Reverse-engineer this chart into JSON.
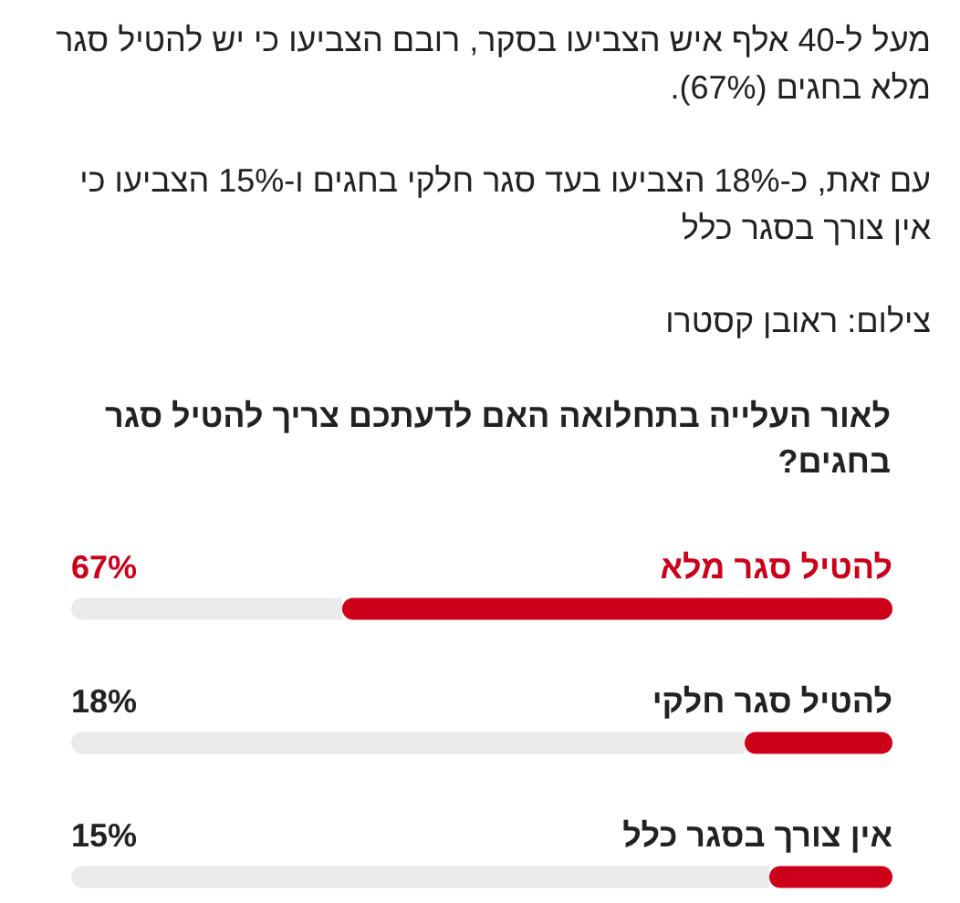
{
  "chart_data": {
    "type": "bar",
    "orientation": "horizontal",
    "title": "לאור העלייה בתחלואה האם לדעתכם צריך להטיל סגר בחגים?",
    "annotations": [
      "מעל ל-40 אלף איש הצביעו בסקר, רובם הצביעו כי יש להטיל סגר מלא בחגים (67%).",
      "עם זאת, כ-18% הצביעו בעד סגר חלקי בחגים ו-15% הצביעו כי אין צורך בסגר כלל",
      "צילום: ראובן קסטרו"
    ],
    "categories": [
      "להטיל סגר מלא",
      "להטיל סגר חלקי",
      "אין צורך בסגר כלל"
    ],
    "values": [
      67,
      18,
      15
    ],
    "value_labels": [
      "67%",
      "18%",
      "15%"
    ],
    "color": "#cc0019",
    "xlim": [
      100,
      0
    ]
  }
}
